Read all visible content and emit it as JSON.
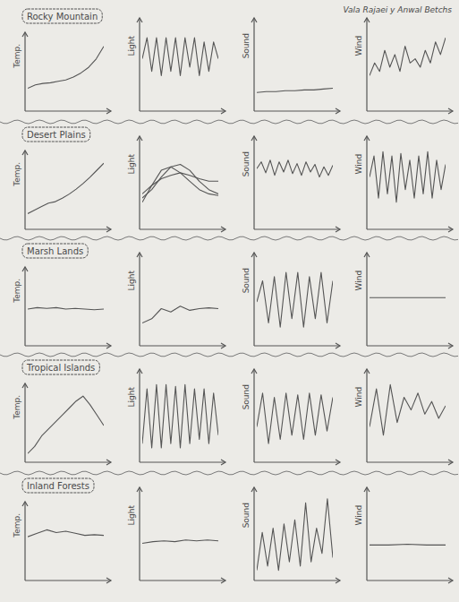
{
  "header": {
    "text": "Vala Rajaei y Anwal Betchs"
  },
  "chart_data": [
    {
      "type": "line",
      "title": "Rocky Mountain",
      "ylabel": "Temp.",
      "tick_labels": false,
      "x": [
        0,
        1,
        2,
        3,
        4,
        5,
        6,
        7,
        8,
        9,
        10
      ],
      "values": [
        30,
        35,
        37,
        38,
        40,
        42,
        46,
        52,
        60,
        72,
        90
      ],
      "xlim": [
        0,
        10
      ],
      "ylim": [
        0,
        100
      ]
    },
    {
      "type": "line",
      "ylabel": "Light",
      "tick_labels": false,
      "x": [
        0,
        1,
        2,
        3,
        4,
        5,
        6,
        7,
        8,
        9,
        10,
        11,
        12,
        13,
        14,
        15,
        16
      ],
      "values": [
        60,
        85,
        45,
        85,
        40,
        85,
        45,
        85,
        40,
        85,
        50,
        85,
        40,
        80,
        45,
        80,
        60
      ],
      "xlim": [
        0,
        16
      ],
      "ylim": [
        0,
        100
      ]
    },
    {
      "type": "line",
      "ylabel": "Sound",
      "tick_labels": false,
      "x": [
        0,
        1,
        2,
        3,
        4,
        5,
        6,
        7,
        8
      ],
      "values": [
        20,
        21,
        21,
        22,
        22,
        23,
        23,
        24,
        25
      ],
      "xlim": [
        0,
        8
      ],
      "ylim": [
        0,
        100
      ]
    },
    {
      "type": "line",
      "ylabel": "Wind",
      "tick_labels": false,
      "x": [
        0,
        1,
        2,
        3,
        4,
        5,
        6,
        7,
        8,
        9,
        10,
        11,
        12,
        13,
        14,
        15
      ],
      "values": [
        40,
        55,
        45,
        70,
        50,
        65,
        45,
        75,
        55,
        60,
        50,
        70,
        55,
        80,
        65,
        85
      ],
      "xlim": [
        0,
        15
      ],
      "ylim": [
        0,
        100
      ]
    },
    {
      "type": "line",
      "title": "Desert Plains",
      "ylabel": "Temp.",
      "tick_labels": false,
      "x": [
        0,
        1,
        2,
        3,
        4,
        5,
        6,
        7,
        8,
        9,
        10,
        11
      ],
      "values": [
        20,
        25,
        30,
        35,
        37,
        42,
        48,
        55,
        63,
        72,
        82,
        92
      ],
      "xlim": [
        0,
        11
      ],
      "ylim": [
        0,
        100
      ]
    },
    {
      "type": "line",
      "ylabel": "Light",
      "tick_labels": false,
      "x": [
        0,
        1,
        2,
        3,
        4,
        5,
        6,
        7,
        8
      ],
      "series": [
        {
          "values": [
            30,
            50,
            68,
            72,
            65,
            55,
            45,
            40,
            38
          ]
        },
        {
          "values": [
            35,
            45,
            60,
            72,
            75,
            68,
            55,
            45,
            40
          ]
        },
        {
          "values": [
            40,
            50,
            58,
            62,
            65,
            62,
            58,
            55,
            55
          ]
        }
      ],
      "xlim": [
        0,
        8
      ],
      "ylim": [
        0,
        100
      ]
    },
    {
      "type": "line",
      "ylabel": "Sound",
      "tick_labels": false,
      "x": [
        0,
        1,
        2,
        3,
        4,
        5,
        6,
        7,
        8,
        9,
        10,
        11,
        12,
        13,
        14,
        15,
        16,
        17
      ],
      "values": [
        70,
        78,
        65,
        80,
        62,
        78,
        66,
        80,
        64,
        76,
        62,
        78,
        66,
        75,
        60,
        72,
        62,
        74
      ],
      "xlim": [
        0,
        17
      ],
      "ylim": [
        0,
        100
      ]
    },
    {
      "type": "line",
      "ylabel": "Wind",
      "tick_labels": false,
      "x": [
        0,
        1,
        2,
        3,
        4,
        5,
        6,
        7,
        8,
        9,
        10,
        11,
        12,
        13,
        14,
        15,
        16,
        17
      ],
      "values": [
        60,
        85,
        35,
        90,
        40,
        85,
        30,
        88,
        45,
        80,
        35,
        85,
        40,
        90,
        35,
        80,
        45,
        75
      ],
      "xlim": [
        0,
        17
      ],
      "ylim": [
        0,
        100
      ]
    },
    {
      "type": "line",
      "title": "Marsh Lands",
      "ylabel": "Temp.",
      "tick_labels": false,
      "x": [
        0,
        1,
        2,
        3,
        4,
        5,
        6,
        7,
        8
      ],
      "values": [
        50,
        52,
        51,
        52,
        50,
        51,
        50,
        49,
        50
      ],
      "xlim": [
        0,
        8
      ],
      "ylim": [
        0,
        100
      ]
    },
    {
      "type": "line",
      "ylabel": "Light",
      "tick_labels": false,
      "x": [
        0,
        1,
        2,
        3,
        4,
        5,
        6,
        7,
        8
      ],
      "values": [
        25,
        30,
        42,
        38,
        45,
        40,
        42,
        43,
        42
      ],
      "xlim": [
        0,
        8
      ],
      "ylim": [
        0,
        100
      ]
    },
    {
      "type": "line",
      "ylabel": "Sound",
      "tick_labels": false,
      "x": [
        0,
        1,
        2,
        3,
        4,
        5,
        6,
        7,
        8,
        9,
        10,
        11,
        12,
        13
      ],
      "values": [
        50,
        75,
        25,
        80,
        20,
        85,
        30,
        85,
        20,
        80,
        30,
        85,
        25,
        75
      ],
      "xlim": [
        0,
        13
      ],
      "ylim": [
        0,
        100
      ]
    },
    {
      "type": "line",
      "ylabel": "Wind",
      "tick_labels": false,
      "x": [
        0,
        1,
        2,
        3,
        4
      ],
      "values": [
        55,
        55,
        55,
        55,
        55
      ],
      "xlim": [
        0,
        4
      ],
      "ylim": [
        0,
        100
      ]
    },
    {
      "type": "line",
      "title": "Tropical Islands",
      "ylabel": "Temp.",
      "tick_labels": false,
      "x": [
        0,
        1,
        2,
        3,
        4,
        5,
        6,
        7,
        8,
        9,
        10,
        11
      ],
      "values": [
        10,
        20,
        35,
        45,
        55,
        65,
        75,
        85,
        92,
        80,
        65,
        50
      ],
      "xlim": [
        0,
        11
      ],
      "ylim": [
        0,
        100
      ]
    },
    {
      "type": "line",
      "ylabel": "Light",
      "tick_labels": false,
      "x": [
        0,
        1,
        2,
        3,
        4,
        5,
        6,
        7,
        8,
        9,
        10,
        11,
        12,
        13,
        14,
        15,
        16
      ],
      "values": [
        20,
        85,
        15,
        90,
        15,
        90,
        20,
        88,
        15,
        90,
        20,
        85,
        25,
        85,
        20,
        80,
        30
      ],
      "xlim": [
        0,
        16
      ],
      "ylim": [
        0,
        100
      ]
    },
    {
      "type": "line",
      "ylabel": "Sound",
      "tick_labels": false,
      "x": [
        0,
        1,
        2,
        3,
        4,
        5,
        6,
        7,
        8,
        9,
        10,
        11,
        12,
        13
      ],
      "values": [
        40,
        80,
        20,
        75,
        25,
        80,
        30,
        78,
        25,
        80,
        30,
        78,
        35,
        75
      ],
      "xlim": [
        0,
        13
      ],
      "ylim": [
        0,
        100
      ]
    },
    {
      "type": "line",
      "ylabel": "Wind",
      "tick_labels": false,
      "x": [
        0,
        1,
        2,
        3,
        4,
        5,
        6,
        7,
        8,
        9,
        10,
        11
      ],
      "values": [
        40,
        85,
        30,
        90,
        45,
        75,
        60,
        80,
        55,
        70,
        50,
        65
      ],
      "xlim": [
        0,
        11
      ],
      "ylim": [
        0,
        100
      ]
    },
    {
      "type": "line",
      "title": "Inland Forests",
      "ylabel": "Temp.",
      "tick_labels": false,
      "x": [
        0,
        1,
        2,
        3,
        4,
        5,
        6,
        7,
        8
      ],
      "values": [
        60,
        65,
        70,
        66,
        68,
        65,
        62,
        63,
        62
      ],
      "xlim": [
        0,
        8
      ],
      "ylim": [
        0,
        100
      ]
    },
    {
      "type": "line",
      "ylabel": "Light",
      "tick_labels": false,
      "x": [
        0,
        1,
        2,
        3,
        4,
        5,
        6,
        7
      ],
      "values": [
        42,
        44,
        45,
        44,
        46,
        45,
        46,
        45
      ],
      "xlim": [
        0,
        7
      ],
      "ylim": [
        0,
        100
      ]
    },
    {
      "type": "line",
      "ylabel": "Sound",
      "tick_labels": false,
      "x": [
        0,
        1,
        2,
        3,
        4,
        5,
        6,
        7,
        8,
        9,
        10,
        11,
        12,
        13,
        14
      ],
      "values": [
        10,
        55,
        15,
        60,
        10,
        65,
        20,
        70,
        15,
        90,
        20,
        60,
        30,
        95,
        25
      ],
      "xlim": [
        0,
        14
      ],
      "ylim": [
        0,
        100
      ]
    },
    {
      "type": "line",
      "ylabel": "Wind",
      "tick_labels": false,
      "x": [
        0,
        1,
        2,
        3,
        4
      ],
      "values": [
        40,
        40,
        41,
        40,
        40
      ],
      "xlim": [
        0,
        4
      ],
      "ylim": [
        0,
        100
      ]
    }
  ]
}
